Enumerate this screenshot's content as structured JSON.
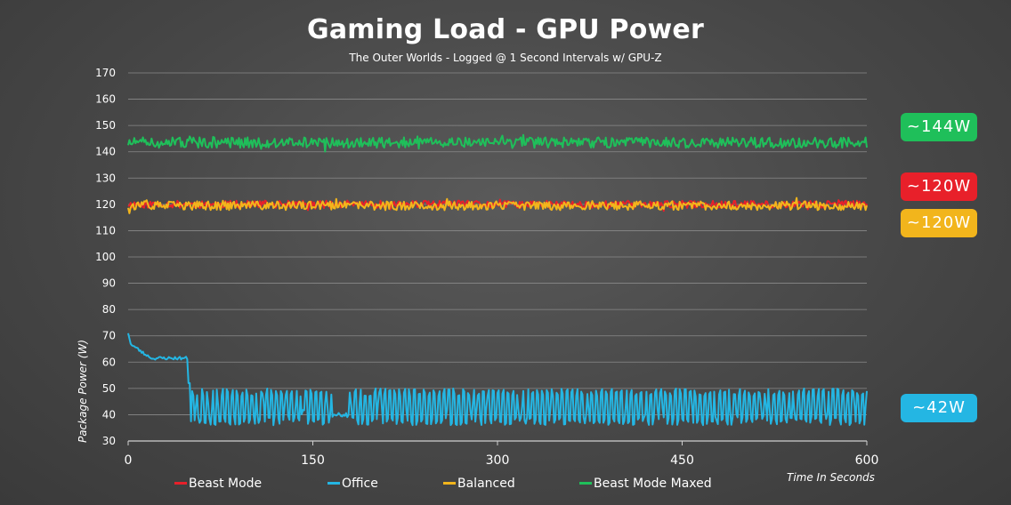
{
  "chart_data": {
    "type": "line",
    "title": "Gaming Load - GPU Power",
    "subtitle": "The Outer Worlds - Logged @ 1 Second Intervals w/ GPU-Z",
    "xlabel": "Time In Seconds",
    "ylabel": "Package Power (W)",
    "xlim": [
      0,
      600
    ],
    "ylim": [
      30,
      170
    ],
    "x_ticks": [
      "0",
      "150",
      "300",
      "450",
      "600"
    ],
    "y_ticks": [
      "30",
      "40",
      "50",
      "60",
      "70",
      "80",
      "90",
      "100",
      "110",
      "120",
      "130",
      "140",
      "150",
      "160",
      "170"
    ],
    "grid": "horizontal",
    "legend_position": "bottom",
    "series": [
      {
        "name": "Beast Mode",
        "color": "#e8202a",
        "approx": 120
      },
      {
        "name": "Office",
        "color": "#24b6e3",
        "approx": 42
      },
      {
        "name": "Balanced",
        "color": "#f2b51c",
        "approx": 120
      },
      {
        "name": "Beast Mode Maxed",
        "color": "#1fbf5a",
        "approx": 144
      }
    ],
    "annotations": [
      {
        "label": "~144W",
        "color": "#1fbf5a",
        "value": 144
      },
      {
        "label": "~120W",
        "color": "#e8202a",
        "value": 120
      },
      {
        "label": "~120W",
        "color": "#f2b51c",
        "value": 120
      },
      {
        "label": "~42W",
        "color": "#24b6e3",
        "value": 42
      }
    ]
  }
}
